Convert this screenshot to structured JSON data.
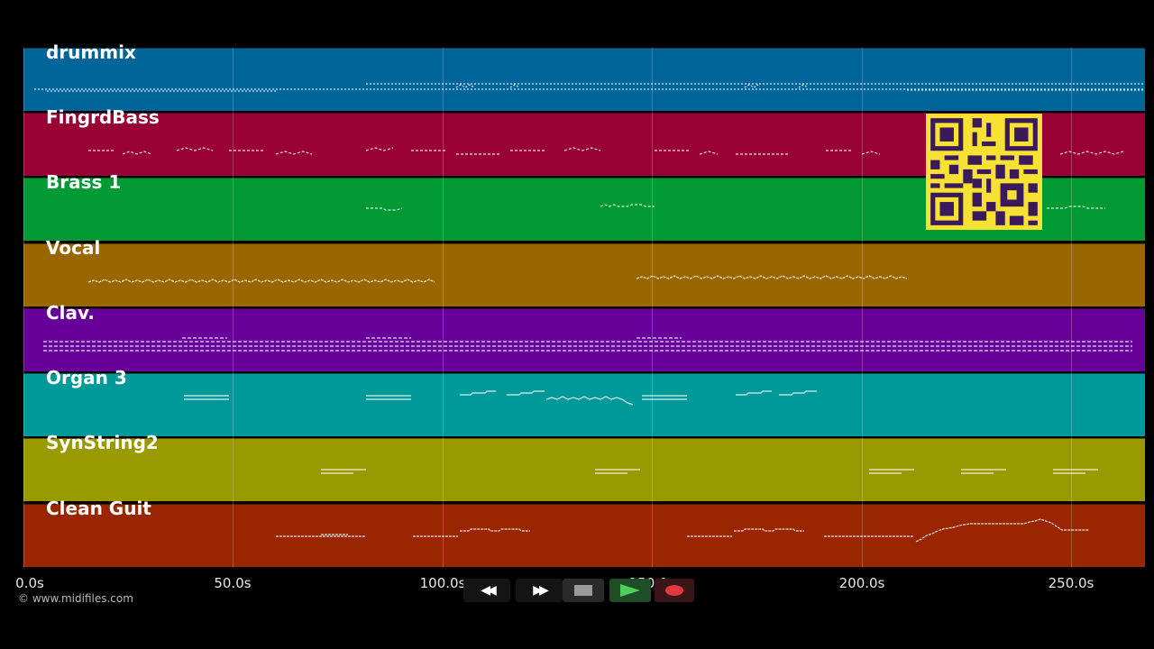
{
  "tracks": [
    {
      "name": "drummix",
      "color": "#006699"
    },
    {
      "name": "FingrdBass",
      "color": "#990033"
    },
    {
      "name": "Brass 1",
      "color": "#009933"
    },
    {
      "name": "Vocal",
      "color": "#996600"
    },
    {
      "name": "Clav.",
      "color": "#660099"
    },
    {
      "name": "Organ 3",
      "color": "#009999"
    },
    {
      "name": "SynString2",
      "color": "#999900"
    },
    {
      "name": "Clean Guit",
      "color": "#992600"
    }
  ],
  "timeline": {
    "ticks": [
      "0.0s",
      "50.0s",
      "100.0s",
      "150.0s",
      "200.0s",
      "250.0s"
    ]
  },
  "footer": {
    "copyright": "© www.midifiles.com"
  },
  "transport": {
    "rewind_icon": "rewind-icon",
    "fastforward_icon": "fast-forward-icon",
    "stop_icon": "stop-icon",
    "play_icon": "play-icon",
    "record_icon": "record-icon",
    "rewind_label": "◀◀",
    "fastforward_label": "▶▶"
  },
  "colors": {
    "background": "#000000",
    "qr_background": "#f7e234",
    "qr_foreground": "#3a1a5a",
    "play_green": "#2f8f3f",
    "record_red": "#c0303a"
  }
}
